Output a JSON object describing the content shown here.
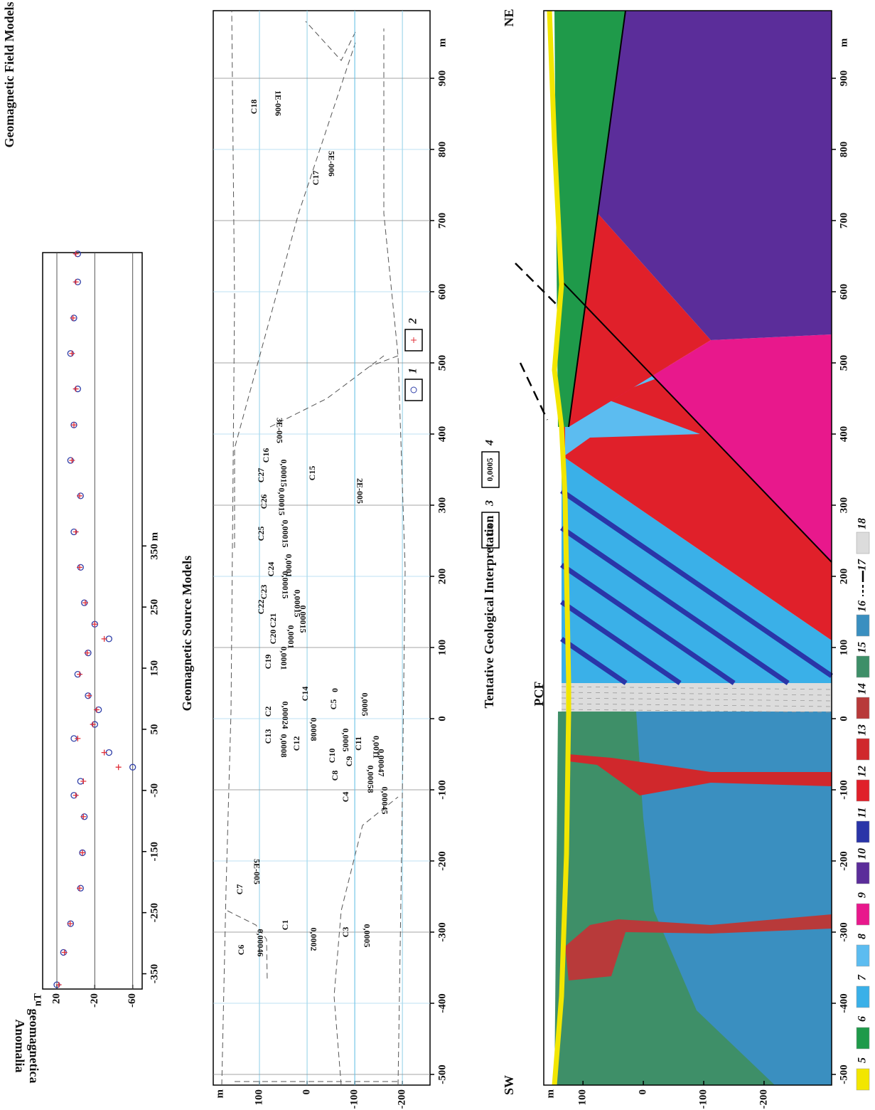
{
  "chart_data": [
    {
      "type": "scatter",
      "title": "Geomagnetic Field Models",
      "y_label": [
        "Anomalia",
        "geomagnetica"
      ],
      "y_unit": "nT",
      "xlim": [
        -375,
        830
      ],
      "ylim": [
        35,
        -70
      ],
      "xticks": [
        -350,
        -250,
        -150,
        -50,
        50,
        150,
        250,
        {
          "value": 350,
          "label": "350 m"
        }
      ],
      "yticks": [
        20,
        -20,
        -60
      ],
      "grid": true,
      "series": [
        {
          "name": "1",
          "color": "#2f3fa8",
          "marker": "circle",
          "x": [
            -368,
            -315,
            -268,
            -210,
            -152,
            -93,
            -58,
            -35,
            -12,
            12,
            35,
            58,
            82,
            105,
            140,
            175,
            198,
            222,
            257,
            315,
            373,
            432,
            490,
            548,
            607,
            665,
            723,
            782,
            828
          ],
          "values": [
            20,
            13,
            5.5,
            -5,
            -7,
            -9,
            2,
            -5,
            -60,
            -35,
            2,
            -20,
            -24,
            -13,
            -2,
            -13,
            -35,
            -20,
            -9,
            -5,
            2,
            -5,
            5.5,
            2,
            -2,
            5.5,
            2,
            -2,
            -2
          ]
        },
        {
          "name": "2",
          "color": "#e0303a",
          "marker": "plus",
          "x": [
            -368,
            -315,
            -268,
            -210,
            -152,
            -93,
            -58,
            -35,
            -12,
            12,
            35,
            58,
            82,
            105,
            140,
            175,
            198,
            222,
            257,
            315,
            373,
            432,
            490,
            548,
            607,
            665,
            723,
            782,
            828
          ],
          "values": [
            18,
            12,
            6,
            -4,
            -7,
            -8,
            0,
            -8,
            -45,
            -30,
            -2,
            -18,
            -22,
            -14,
            -4,
            -12,
            -30,
            -20,
            -10,
            -4,
            0,
            -4,
            4,
            2,
            0,
            4,
            3,
            0,
            0
          ]
        }
      ]
    },
    {
      "type": "model",
      "title": "Geomagnetic Source Models",
      "y_unit": "m",
      "x_unit": "m",
      "xlim": [
        -515,
        995
      ],
      "ylim": [
        197,
        -258
      ],
      "xticks": [
        -500,
        -400,
        -300,
        -200,
        -100,
        0,
        100,
        200,
        300,
        400,
        500,
        600,
        700,
        800,
        900
      ],
      "yticks": [
        100,
        0,
        -100,
        -200
      ],
      "grid": true,
      "bodies": [
        {
          "name": "C1",
          "value": "0,0002"
        },
        {
          "name": "C2",
          "value": "0,00024"
        },
        {
          "name": "C3",
          "value": "0,0005"
        },
        {
          "name": "C4",
          "value": "0,00045"
        },
        {
          "name": "C5",
          "value": "0,0005"
        },
        {
          "name": "C6",
          "value": "0,00046"
        },
        {
          "name": "C7",
          "value": "5E-005"
        },
        {
          "name": "C8",
          "value": "0,00058"
        },
        {
          "name": "C9",
          "value": "0,00047"
        },
        {
          "name": "C10",
          "value": "0,0005"
        },
        {
          "name": "C11",
          "value": "0,0011"
        },
        {
          "name": "C12",
          "value": "0,0008"
        },
        {
          "name": "C13",
          "value": "0,0008"
        },
        {
          "name": "C14",
          "value": "0"
        },
        {
          "name": "C15",
          "value": "2E-005"
        },
        {
          "name": "C16",
          "value": "3E-005"
        },
        {
          "name": "C17",
          "value": "5E-006"
        },
        {
          "name": "C18",
          "value": "1E-006"
        },
        {
          "name": "C19",
          "value": "0,0001"
        },
        {
          "name": "C20",
          "value": "0,0001"
        },
        {
          "name": "C21",
          "value": "0,00015"
        },
        {
          "name": "C22",
          "value": "0,00015"
        },
        {
          "name": "C23",
          "value": "0,00015"
        },
        {
          "name": "C24",
          "value": "0,0001"
        },
        {
          "name": "C25",
          "value": "0,00015"
        },
        {
          "name": "C26",
          "value": "0,00015"
        },
        {
          "name": "C27",
          "value": "0,00015"
        }
      ],
      "legend": [
        {
          "label": "C3",
          "number": "3"
        },
        {
          "label": "0,0005",
          "number": "4"
        }
      ]
    },
    {
      "type": "section",
      "title": "Tentative Geological Interpretation",
      "y_unit": "m",
      "x_unit": "m",
      "xlim": [
        -515,
        995
      ],
      "ylim": [
        165,
        -312
      ],
      "xticks": [
        -500,
        -400,
        -300,
        -200,
        -100,
        0,
        100,
        200,
        300,
        400,
        500,
        600,
        700,
        800,
        900
      ],
      "yticks": [
        100,
        0,
        -100,
        -200
      ],
      "labels": {
        "left": "SW",
        "right": "NE",
        "fault": "PCF"
      },
      "units": [
        {
          "number": "5",
          "color": "#f2e600"
        },
        {
          "number": "6",
          "color": "#1f9a4a"
        },
        {
          "number": "7",
          "color": "#3ab0e8"
        },
        {
          "number": "8",
          "color": "#5cbcf0"
        },
        {
          "number": "9",
          "color": "#e8188c"
        },
        {
          "number": "10",
          "color": "#5b2d9a"
        },
        {
          "number": "11",
          "color": "#2a35a8"
        },
        {
          "number": "12",
          "color": "#e0202a"
        },
        {
          "number": "13",
          "color": "#d0282c"
        },
        {
          "number": "14",
          "color": "#b83a3a"
        },
        {
          "number": "15",
          "color": "#3e8f68"
        },
        {
          "number": "16",
          "color": "#3a8fc0"
        },
        {
          "number": "17",
          "color": "#000000",
          "symbol": "line"
        },
        {
          "number": "18",
          "color": "#dcdcdc"
        }
      ]
    }
  ]
}
